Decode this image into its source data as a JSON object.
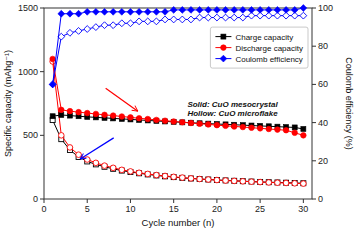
{
  "chart_data": {
    "type": "line",
    "x": [
      1,
      2,
      3,
      4,
      5,
      6,
      7,
      8,
      9,
      10,
      11,
      12,
      13,
      14,
      15,
      16,
      17,
      18,
      19,
      20,
      21,
      22,
      23,
      24,
      25,
      26,
      27,
      28,
      29,
      30
    ],
    "xlabel": "Cycle number (n)",
    "ylabel": "Specific capacity (mAhg⁻¹)",
    "y2label": "Coulomb efficiency (%)",
    "xlim": [
      0,
      31
    ],
    "ylim": [
      0,
      1500
    ],
    "y2lim": [
      0,
      100
    ],
    "xticks": [
      0,
      5,
      10,
      15,
      20,
      25,
      30
    ],
    "yticks": [
      0,
      500,
      1000,
      1500
    ],
    "y2ticks": [
      0,
      20,
      40,
      60,
      80,
      100
    ],
    "grid": false,
    "legend": "upper right",
    "annotation": "Solid: CuO mesocrystal\nHollow: CuO microflake",
    "series": [
      {
        "name": "Charge capacity",
        "color": "black",
        "marker": "square",
        "line_style": "solid",
        "values": [
          650,
          660,
          655,
          650,
          645,
          641,
          637,
          633,
          629,
          625,
          621,
          617,
          613,
          609,
          606,
          602,
          599,
          595,
          592,
          589,
          586,
          583,
          580,
          577,
          574,
          571,
          568,
          565,
          562,
          550
        ]
      },
      {
        "name": "Discharge capacity",
        "color": "red",
        "marker": "circle",
        "line_style": "solid",
        "values": [
          1100,
          700,
          690,
          682,
          675,
          668,
          661,
          655,
          648,
          641,
          634,
          628,
          621,
          615,
          609,
          603,
          597,
          591,
          586,
          580,
          575,
          570,
          565,
          560,
          555,
          550,
          545,
          540,
          520,
          500
        ]
      },
      {
        "color": "black",
        "marker": "square-open",
        "line_style": "solid",
        "values": [
          620,
          470,
          385,
          330,
          295,
          272,
          253,
          237,
          223,
          212,
          202,
          193,
          185,
          178,
          172,
          166,
          161,
          157,
          153,
          149,
          146,
          143,
          140,
          137,
          134,
          132,
          130,
          128,
          126,
          124
        ]
      },
      {
        "color": "red",
        "marker": "circle-open",
        "line_style": "solid",
        "values": [
          1080,
          500,
          405,
          348,
          310,
          284,
          262,
          245,
          229,
          217,
          206,
          197,
          188,
          181,
          174,
          168,
          162,
          157,
          153,
          149,
          145,
          142,
          139,
          136,
          133,
          130,
          128,
          126,
          123,
          121
        ]
      },
      {
        "name": "Coulomb efficiency",
        "color": "blue",
        "marker": "diamond",
        "line_style": "solid",
        "axis": "y2",
        "values": [
          60,
          97,
          97,
          97,
          98,
          98,
          98,
          98,
          98,
          98,
          98,
          98,
          98,
          98,
          99,
          99,
          99,
          99,
          99,
          99,
          99,
          99,
          99,
          99,
          99,
          99,
          99,
          99,
          99,
          100
        ]
      },
      {
        "color": "blue",
        "marker": "diamond-open",
        "line_style": "solid",
        "axis": "y2",
        "values": [
          60,
          85,
          87,
          88,
          89,
          90,
          91,
          91,
          92,
          92,
          93,
          93,
          93,
          94,
          94,
          94,
          94,
          95,
          95,
          95,
          95,
          95,
          95,
          96,
          96,
          96,
          96,
          96,
          96,
          96
        ]
      }
    ]
  }
}
